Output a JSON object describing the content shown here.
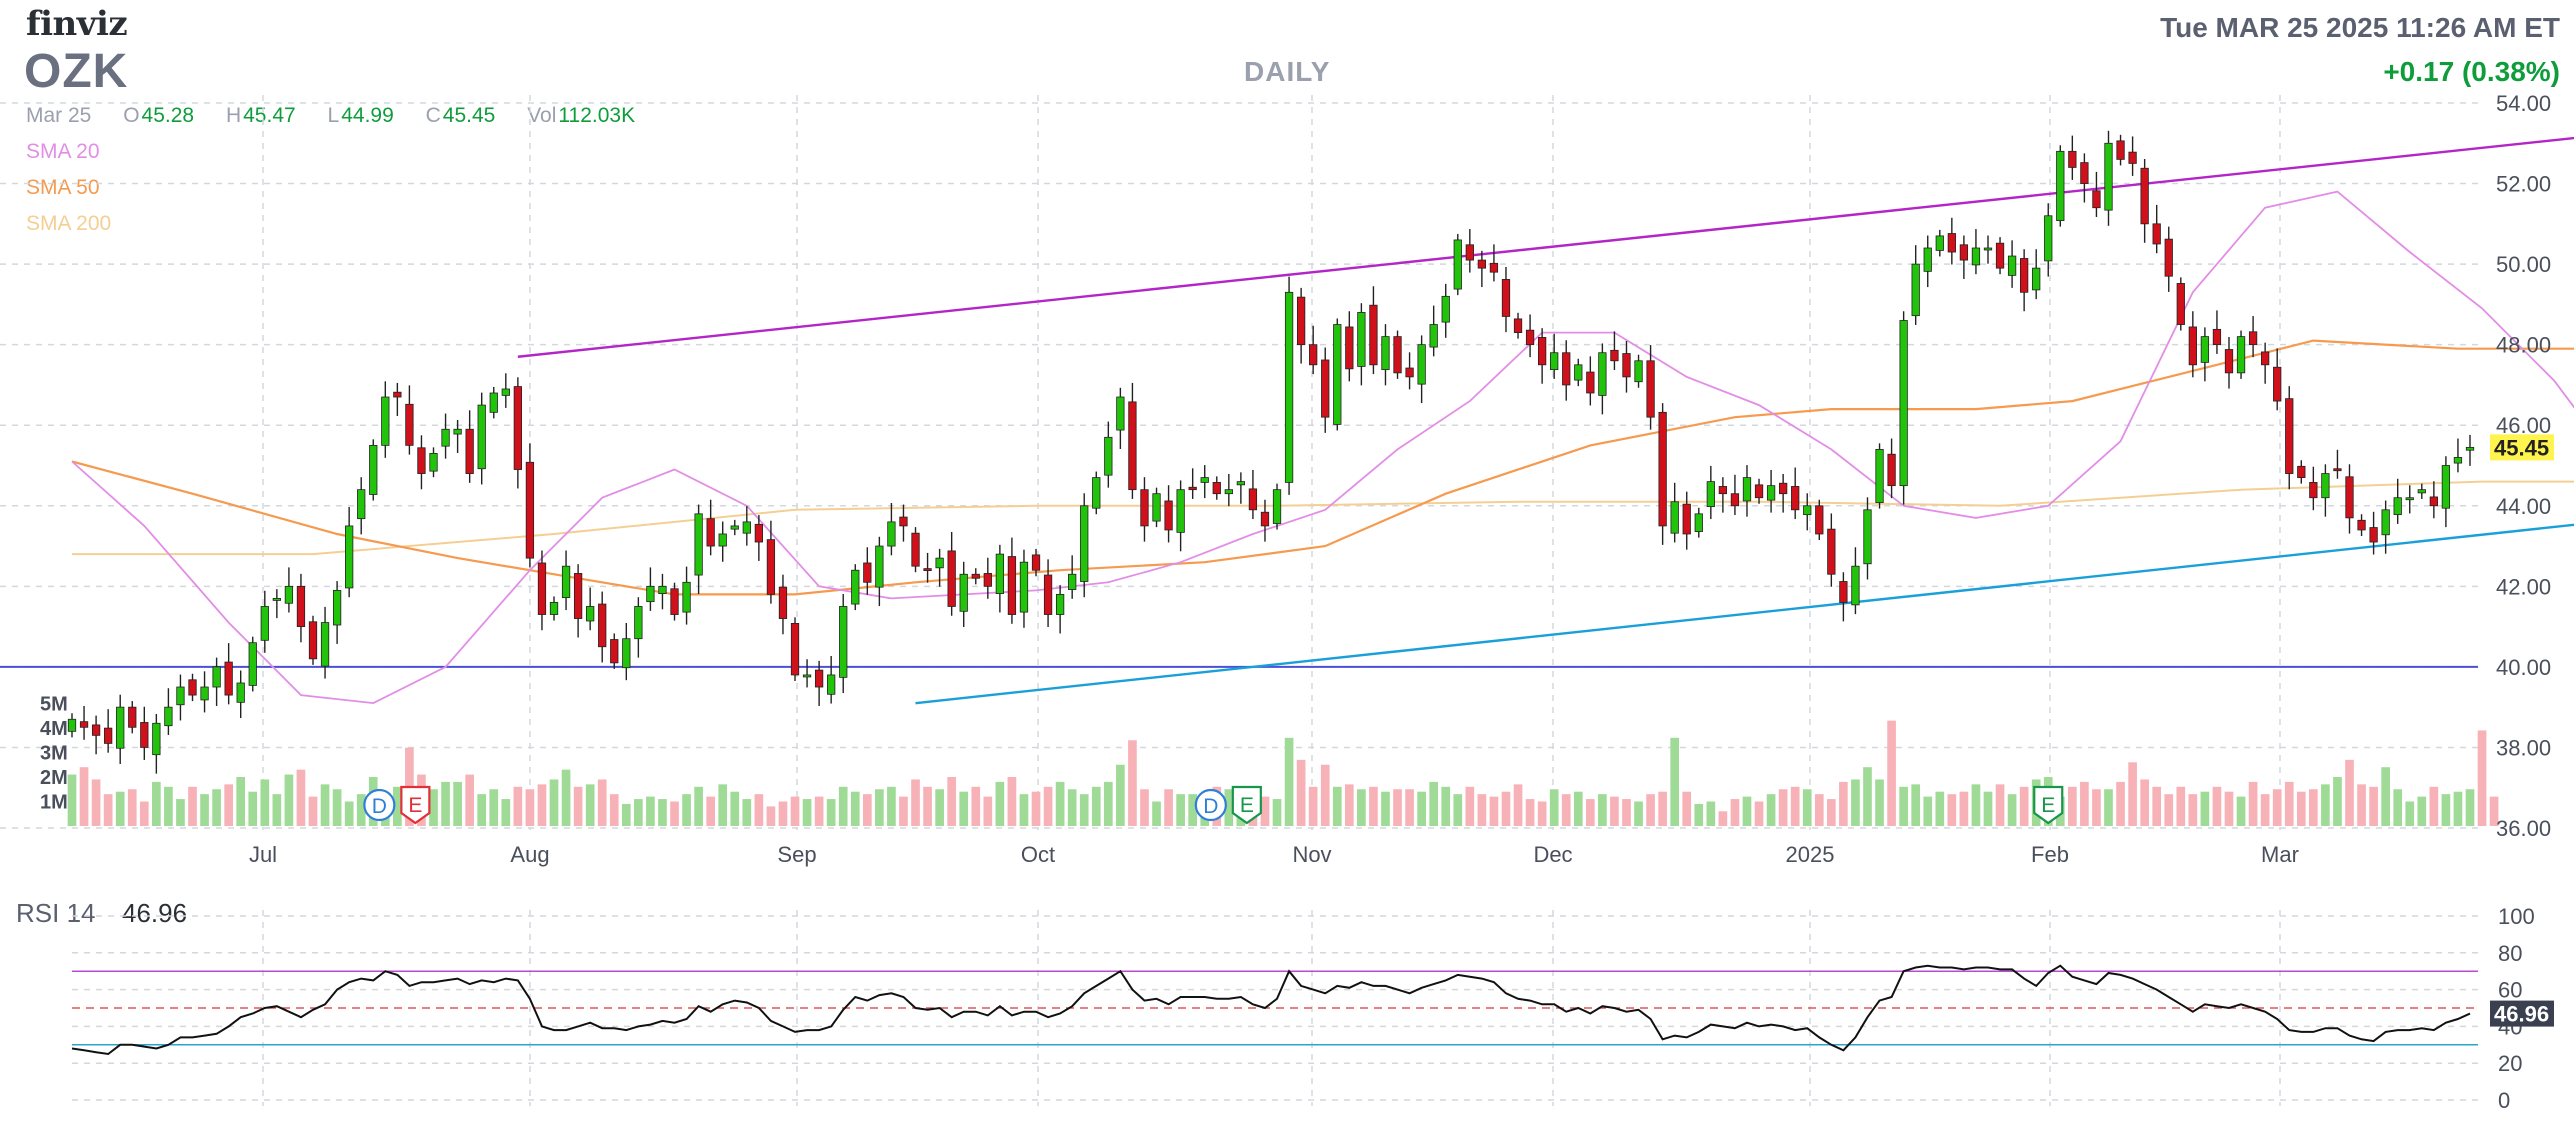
{
  "header": {
    "logo": "finviz",
    "ticker": "OZK",
    "interval": "DAILY",
    "datetime": "Tue MAR 25 2025 11:26 AM ET",
    "change": "+0.17 (0.38%)"
  },
  "ohlc": {
    "date": "Mar 25",
    "open_label": "O",
    "open": "45.28",
    "high_label": "H",
    "high": "45.47",
    "low_label": "L",
    "low": "44.99",
    "close_label": "C",
    "close": "45.45",
    "vol_label": "Vol",
    "vol": "112.03K"
  },
  "legend": {
    "sma20": {
      "label": "SMA 20",
      "color": "#e28ee6"
    },
    "sma50": {
      "label": "SMA 50",
      "color": "#f59a4e"
    },
    "sma200": {
      "label": "SMA 200",
      "color": "#f4cf94"
    }
  },
  "colors": {
    "up": "#22c40b",
    "down": "#d0101a",
    "upVol": "#9fdb97",
    "downVol": "#f7b2b8",
    "resistance": "#b325c6",
    "support": "#1aa0d8",
    "hline": "#4b4fd6",
    "grid": "#d4d7dd",
    "axis": "#4a4f5c",
    "rsi": "#111111"
  },
  "chart_data": [
    {
      "type": "candlestick",
      "title": "OZK",
      "y_axis": {
        "ticks": [
          "36.00",
          "38.00",
          "40.00",
          "42.00",
          "44.00",
          "46.00",
          "48.00",
          "50.00",
          "52.00",
          "54.00"
        ],
        "range": [
          36,
          54
        ],
        "side": "right"
      },
      "x_axis": {
        "ticks": [
          "Jul",
          "Aug",
          "Sep",
          "Oct",
          "Nov",
          "Dec",
          "2025",
          "Feb",
          "Mar"
        ]
      },
      "last_price_label": "45.45",
      "closes": [
        38.7,
        38.5,
        38.3,
        38.1,
        39.0,
        38.5,
        38.0,
        38.6,
        39.0,
        39.5,
        39.3,
        39.5,
        40.0,
        39.3,
        39.6,
        40.6,
        41.5,
        41.7,
        42.0,
        41.0,
        40.2,
        41.1,
        41.9,
        43.5,
        44.4,
        45.5,
        46.7,
        46.7,
        45.5,
        44.8,
        45.3,
        45.9,
        45.9,
        44.8,
        46.5,
        46.8,
        46.9,
        44.9,
        42.7,
        41.3,
        41.6,
        42.5,
        41.2,
        41.5,
        40.5,
        40.1,
        40.7,
        41.5,
        42.0,
        42.0,
        41.3,
        42.1,
        43.8,
        43.0,
        43.3,
        43.5,
        43.6,
        43.1,
        41.8,
        41.2,
        39.8,
        39.8,
        39.5,
        39.8,
        41.5,
        42.4,
        42.1,
        43.0,
        43.6,
        43.5,
        42.5,
        42.4,
        42.7,
        41.5,
        42.3,
        42.2,
        42.0,
        42.8,
        41.3,
        42.6,
        42.4,
        41.3,
        41.8,
        42.3,
        44.0,
        44.7,
        45.7,
        46.7,
        44.4,
        43.5,
        44.3,
        43.4,
        44.4,
        44.4,
        44.7,
        44.3,
        44.4,
        44.6,
        43.9,
        43.5,
        44.4,
        49.3,
        48.0,
        47.5,
        46.2,
        48.5,
        47.4,
        48.8,
        47.5,
        48.2,
        47.3,
        47.2,
        48.0,
        48.5,
        49.2,
        50.6,
        50.1,
        49.9,
        49.8,
        48.7,
        48.3,
        48.0,
        47.5,
        47.8,
        47.0,
        47.5,
        46.8,
        47.8,
        47.6,
        47.2,
        47.6,
        46.2,
        43.5,
        44.1,
        43.3,
        43.8,
        44.6,
        44.3,
        44.0,
        44.7,
        44.2,
        44.5,
        44.3,
        43.9,
        44.0,
        43.3,
        42.3,
        41.6,
        42.5,
        43.9,
        45.4,
        44.5,
        48.6,
        50.0,
        50.4,
        50.7,
        50.3,
        50.1,
        50.4,
        50.4,
        49.9,
        50.2,
        49.3,
        49.9,
        51.2,
        52.8,
        52.4,
        52.0,
        51.4,
        53.0,
        52.6,
        52.5,
        51.0,
        50.5,
        49.7,
        48.5,
        47.5,
        48.2,
        48.0,
        47.3,
        48.2,
        48.0,
        47.5,
        46.6,
        44.8,
        44.7,
        44.2,
        44.8,
        44.9,
        43.7,
        43.4,
        43.1,
        43.9,
        44.2,
        44.2,
        44.4,
        44.0,
        45.0,
        45.2,
        45.45
      ],
      "volumes": [
        2.1,
        2.4,
        1.9,
        1.3,
        1.4,
        1.5,
        1.0,
        1.8,
        1.6,
        1.1,
        1.6,
        1.3,
        1.5,
        1.7,
        2.0,
        1.4,
        1.9,
        1.3,
        2.1,
        2.3,
        1.2,
        1.7,
        1.5,
        1.0,
        1.3,
        2.0,
        1.1,
        1.6,
        3.2,
        2.1,
        1.5,
        1.8,
        1.8,
        2.1,
        1.3,
        1.5,
        1.1,
        1.6,
        1.5,
        1.7,
        1.9,
        2.3,
        1.6,
        1.7,
        1.9,
        1.3,
        0.9,
        1.1,
        1.2,
        1.1,
        1.0,
        1.3,
        1.6,
        1.2,
        1.7,
        1.4,
        1.1,
        1.3,
        0.8,
        1.0,
        1.2,
        1.1,
        1.2,
        1.1,
        1.6,
        1.4,
        1.3,
        1.5,
        1.6,
        1.2,
        1.9,
        1.6,
        1.5,
        2.0,
        1.4,
        1.6,
        1.2,
        1.8,
        2.0,
        1.3,
        1.4,
        1.6,
        1.8,
        1.5,
        1.3,
        1.6,
        1.8,
        2.5,
        3.5,
        1.5,
        1.0,
        1.5,
        1.3,
        1.3,
        1.2,
        1.6,
        1.5,
        1.3,
        1.4,
        1.2,
        1.1,
        3.6,
        2.7,
        1.6,
        2.5,
        1.6,
        1.7,
        1.5,
        1.6,
        1.4,
        1.5,
        1.5,
        1.4,
        1.8,
        1.6,
        1.3,
        1.6,
        1.3,
        1.2,
        1.4,
        1.7,
        1.1,
        1.0,
        1.5,
        1.3,
        1.4,
        1.1,
        1.3,
        1.2,
        1.1,
        1.0,
        1.3,
        1.4,
        3.6,
        1.4,
        0.9,
        1.0,
        0.6,
        1.1,
        1.2,
        1.0,
        1.3,
        1.5,
        1.6,
        1.5,
        1.3,
        1.1,
        1.8,
        1.9,
        2.4,
        1.9,
        4.3,
        1.6,
        1.7,
        1.2,
        1.4,
        1.3,
        1.4,
        1.7,
        1.4,
        1.7,
        1.3,
        1.6,
        1.9,
        2.0,
        1.2,
        1.6,
        1.8,
        1.5,
        1.5,
        1.8,
        2.6,
        1.9,
        1.6,
        1.3,
        1.6,
        1.3,
        1.4,
        1.6,
        1.4,
        1.2,
        1.8,
        1.3,
        1.5,
        1.8,
        1.4,
        1.5,
        1.7,
        2.0,
        2.7,
        1.7,
        1.6,
        2.4,
        1.5,
        1.0,
        1.2,
        1.6,
        1.3,
        1.4,
        1.5,
        3.9,
        1.2
      ],
      "sma20": {
        "name": "SMA 20",
        "values": [
          [
            0,
            45.1
          ],
          [
            6,
            43.5
          ],
          [
            13,
            41.1
          ],
          [
            19,
            39.3
          ],
          [
            25,
            39.1
          ],
          [
            31,
            40.0
          ],
          [
            38,
            42.4
          ],
          [
            44,
            44.2
          ],
          [
            50,
            44.9
          ],
          [
            56,
            44.0
          ],
          [
            62,
            42.0
          ],
          [
            68,
            41.7
          ],
          [
            74,
            41.8
          ],
          [
            80,
            41.9
          ],
          [
            86,
            42.1
          ],
          [
            92,
            42.6
          ],
          [
            98,
            43.3
          ],
          [
            104,
            43.9
          ],
          [
            110,
            45.4
          ],
          [
            116,
            46.6
          ],
          [
            122,
            48.3
          ],
          [
            128,
            48.3
          ],
          [
            134,
            47.2
          ],
          [
            140,
            46.5
          ],
          [
            146,
            45.4
          ],
          [
            152,
            44.0
          ],
          [
            158,
            43.7
          ],
          [
            164,
            44.0
          ],
          [
            170,
            45.6
          ],
          [
            176,
            49.3
          ],
          [
            182,
            51.4
          ],
          [
            188,
            51.8
          ],
          [
            194,
            50.3
          ],
          [
            200,
            48.9
          ],
          [
            206,
            47.1
          ],
          [
            210,
            45.5
          ],
          [
            213,
            45.3
          ]
        ]
      },
      "sma50": {
        "name": "SMA 50",
        "values": [
          [
            0,
            45.1
          ],
          [
            10,
            44.3
          ],
          [
            22,
            43.3
          ],
          [
            32,
            42.7
          ],
          [
            42,
            42.2
          ],
          [
            50,
            41.8
          ],
          [
            60,
            41.8
          ],
          [
            70,
            42.1
          ],
          [
            82,
            42.4
          ],
          [
            94,
            42.6
          ],
          [
            104,
            43.0
          ],
          [
            114,
            44.3
          ],
          [
            126,
            45.5
          ],
          [
            138,
            46.2
          ],
          [
            146,
            46.4
          ],
          [
            158,
            46.4
          ],
          [
            166,
            46.6
          ],
          [
            174,
            47.2
          ],
          [
            186,
            48.1
          ],
          [
            198,
            47.9
          ],
          [
            208,
            47.9
          ],
          [
            213,
            48.0
          ]
        ]
      },
      "sma200": {
        "name": "SMA 200",
        "values": [
          [
            0,
            42.8
          ],
          [
            20,
            42.8
          ],
          [
            40,
            43.3
          ],
          [
            60,
            43.9
          ],
          [
            80,
            44.0
          ],
          [
            100,
            44.0
          ],
          [
            120,
            44.1
          ],
          [
            140,
            44.1
          ],
          [
            160,
            44.0
          ],
          [
            180,
            44.4
          ],
          [
            200,
            44.6
          ],
          [
            213,
            44.6
          ]
        ]
      },
      "volume_axis_ticks": [
        "1M",
        "2M",
        "3M",
        "4M",
        "5M"
      ],
      "earnings_markers": [
        {
          "index": 27,
          "labels": [
            "D",
            "E"
          ]
        },
        {
          "index": 96,
          "labels": [
            "D",
            "E"
          ]
        },
        {
          "index": 164,
          "labels": [
            "E"
          ]
        }
      ],
      "trendlines": {
        "resistance": [
          [
            37,
            47.7
          ],
          [
            213,
            53.3
          ]
        ],
        "support": [
          [
            70,
            39.1
          ],
          [
            213,
            43.7
          ]
        ],
        "horizontal": 40.0
      }
    },
    {
      "type": "line",
      "title": "RSI 14",
      "value_label": "46.96",
      "y_axis": {
        "ticks": [
          "0",
          "20",
          "40",
          "60",
          "80",
          "100"
        ],
        "range": [
          0,
          100
        ],
        "side": "right"
      },
      "levels": {
        "upper": 70,
        "middle": 50,
        "lower": 30
      },
      "values": [
        28,
        27,
        26,
        25,
        30,
        30,
        29,
        28,
        30,
        34,
        34,
        35,
        36,
        40,
        45,
        47,
        50,
        51,
        48,
        45,
        49,
        52,
        60,
        64,
        66,
        65,
        70,
        68,
        62,
        64,
        64,
        65,
        66,
        63,
        65,
        64,
        66,
        65,
        55,
        40,
        38,
        38,
        40,
        42,
        39,
        39,
        38,
        40,
        41,
        43,
        42,
        44,
        51,
        48,
        52,
        54,
        53,
        50,
        43,
        40,
        37,
        38,
        38,
        40,
        49,
        56,
        54,
        57,
        58,
        56,
        50,
        49,
        50,
        45,
        48,
        48,
        46,
        51,
        46,
        48,
        48,
        45,
        47,
        51,
        58,
        62,
        66,
        70,
        60,
        54,
        55,
        52,
        56,
        56,
        56,
        55,
        55,
        56,
        52,
        50,
        55,
        70,
        62,
        60,
        58,
        62,
        61,
        64,
        62,
        62,
        60,
        58,
        61,
        63,
        65,
        68,
        67,
        66,
        64,
        58,
        55,
        54,
        52,
        52,
        48,
        50,
        47,
        51,
        50,
        48,
        49,
        44,
        33,
        35,
        34,
        37,
        41,
        40,
        39,
        42,
        40,
        41,
        40,
        38,
        39,
        34,
        30,
        27,
        34,
        45,
        54,
        56,
        70,
        72,
        73,
        72,
        72,
        71,
        72,
        72,
        71,
        71,
        66,
        62,
        69,
        73,
        67,
        65,
        63,
        69,
        68,
        66,
        63,
        60,
        56,
        52,
        48,
        52,
        51,
        50,
        52,
        50,
        48,
        44,
        38,
        37,
        37,
        39,
        39,
        35,
        33,
        32,
        37,
        38,
        38,
        39,
        38,
        42,
        44,
        46.96
      ]
    }
  ]
}
